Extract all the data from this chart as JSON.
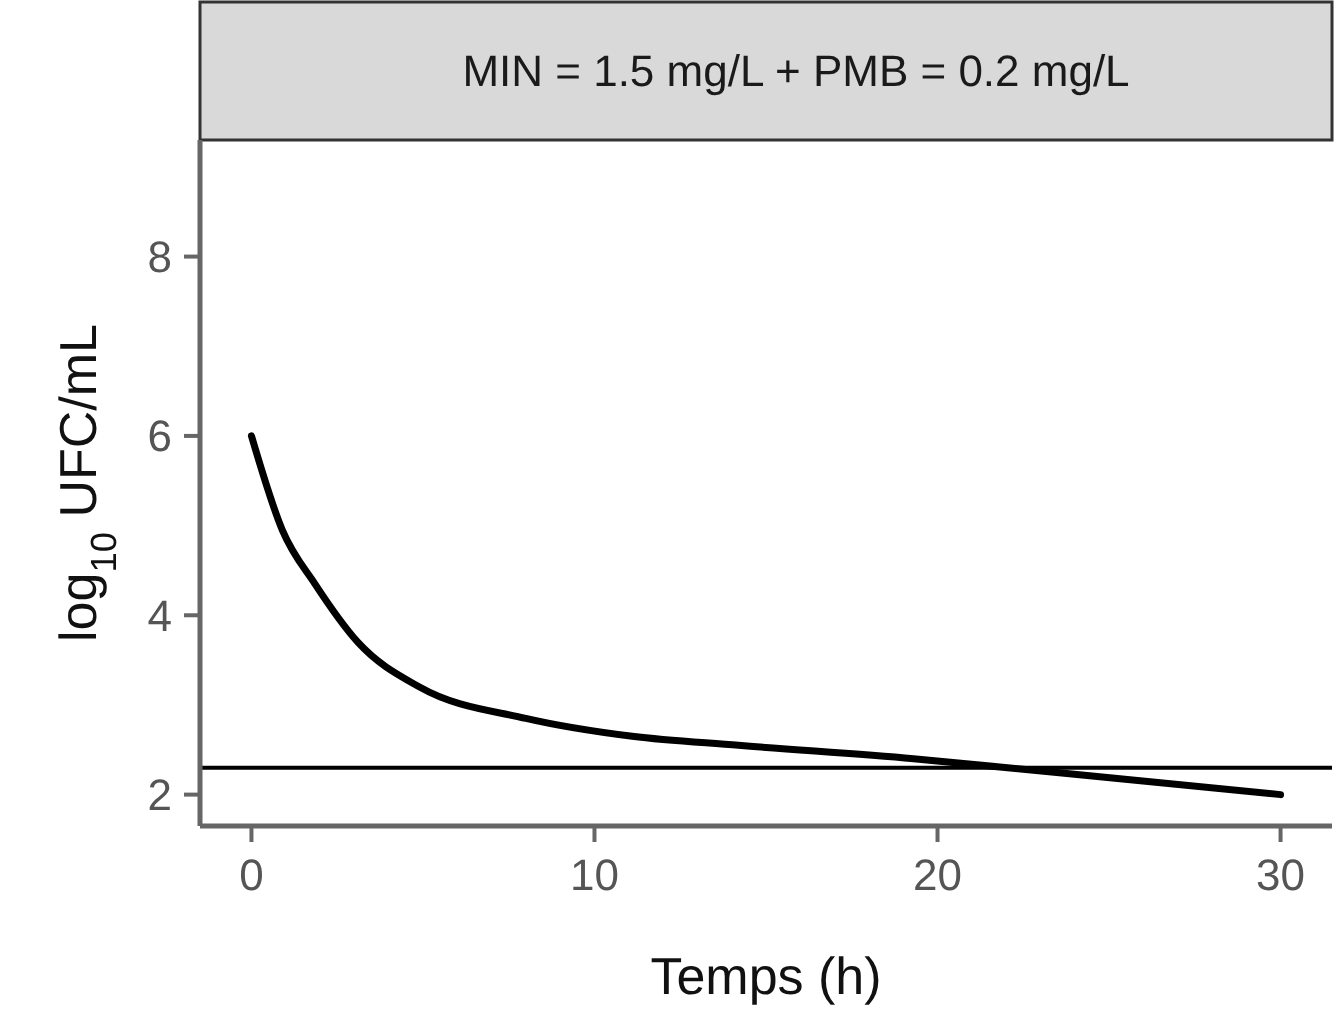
{
  "chart_data": {
    "type": "line",
    "title": "MIN = 1.5 mg/L + PMB = 0.2 mg/L",
    "xlabel": "Temps (h)",
    "ylabel": "log$_{10}$ UFC/mL",
    "x": [
      0,
      0.9,
      1.85,
      3.1,
      4.9,
      8,
      11.1,
      14.2,
      19.3,
      23.4,
      30
    ],
    "series": [
      {
        "color": "#000000",
        "values": [
          6.0,
          4.95,
          4.35,
          3.7,
          3.2,
          2.85,
          2.65,
          2.55,
          2.4,
          2.25,
          2.0
        ]
      }
    ],
    "xlim": [
      -1.5,
      31.5
    ],
    "xticks": [
      0,
      10,
      20,
      30
    ],
    "ylim": [
      1.65,
      9.3
    ],
    "yticks": [
      2,
      4,
      6,
      8
    ],
    "ref_lines": [
      {
        "axis": "y",
        "value": 2.3,
        "color": "#000000"
      }
    ]
  }
}
